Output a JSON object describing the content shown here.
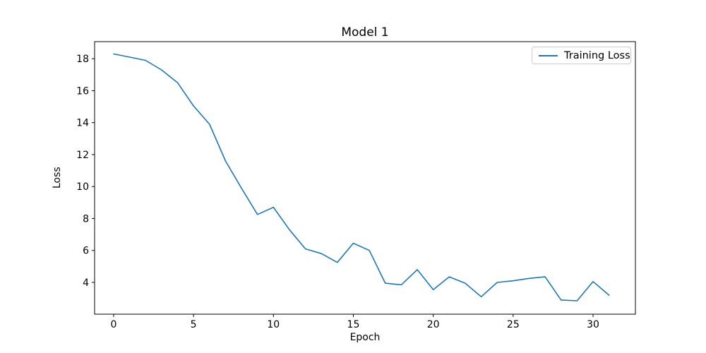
{
  "chart_data": {
    "type": "line",
    "title": "Model 1",
    "xlabel": "Epoch",
    "ylabel": "Loss",
    "legend": {
      "position": "upper right",
      "entries": [
        {
          "label": "Training Loss",
          "color": "#1f77b4"
        }
      ]
    },
    "x": [
      0,
      1,
      2,
      3,
      4,
      5,
      6,
      7,
      8,
      9,
      10,
      11,
      12,
      13,
      14,
      15,
      16,
      17,
      18,
      19,
      20,
      21,
      22,
      23,
      24,
      25,
      26,
      27,
      28,
      29,
      30,
      31
    ],
    "series": [
      {
        "name": "Training Loss",
        "color": "#1f77b4",
        "values": [
          18.3,
          18.1,
          17.9,
          17.3,
          16.5,
          15.05,
          13.9,
          11.6,
          9.9,
          8.25,
          8.7,
          7.3,
          6.1,
          5.8,
          5.25,
          6.45,
          6.0,
          3.95,
          3.85,
          4.8,
          3.55,
          4.35,
          3.95,
          3.1,
          4.0,
          4.1,
          4.25,
          4.35,
          2.9,
          2.85,
          4.05,
          3.2
        ]
      }
    ],
    "xticks": [
      0,
      5,
      10,
      15,
      20,
      25,
      30
    ],
    "yticks": [
      4,
      6,
      8,
      10,
      12,
      14,
      16,
      18
    ],
    "xlim": [
      -1.19,
      32.65
    ],
    "ylim": [
      2.01,
      19.07
    ],
    "grid": false,
    "colors": {
      "line": "#1f77b4",
      "frame": "#000000",
      "text": "#000000",
      "legend_border": "#cccccc",
      "background": "#ffffff"
    }
  }
}
